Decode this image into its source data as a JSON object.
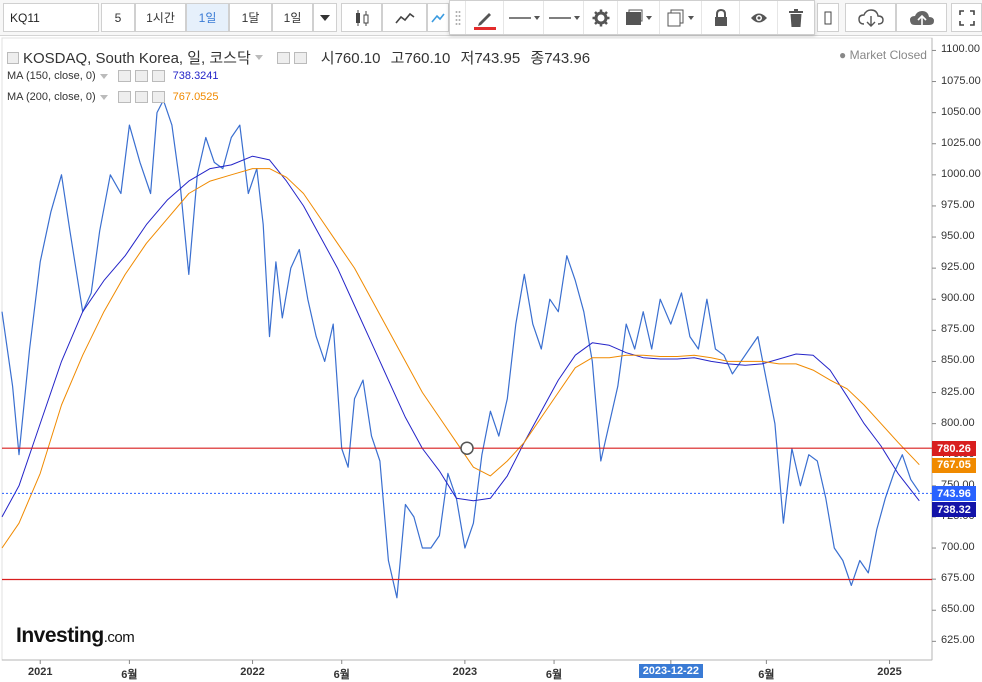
{
  "toolbar": {
    "symbol": "KQ11",
    "interval_value": "5",
    "buttons": [
      "1시간",
      "1일",
      "1달",
      "1일"
    ],
    "active_button_index": 1
  },
  "drawing_toolbar": {
    "icons": [
      "pencil-icon",
      "line-style-icon",
      "line-width-icon",
      "gear-icon",
      "fill-icon",
      "copy-icon",
      "lock-icon",
      "eye-icon",
      "trash-icon"
    ],
    "pen_color": "#e32b2b"
  },
  "legend": {
    "main": "KOSDAQ, South Korea, 일, 코스닥",
    "ohlc": [
      {
        "k": "시",
        "v": "760.10"
      },
      {
        "k": "고",
        "v": "760.10"
      },
      {
        "k": "저",
        "v": "743.95"
      },
      {
        "k": "종",
        "v": "743.96"
      }
    ],
    "ma1_label": "MA (150, close, 0)",
    "ma1_value": "738.3241",
    "ma1_color": "#2424c8",
    "ma2_label": "MA (200, close, 0)",
    "ma2_value": "767.0525",
    "ma2_color": "#f08a00"
  },
  "status": "Market Closed",
  "brand": {
    "name": "Investing",
    "suffix": ".com"
  },
  "chart_data": {
    "type": "line",
    "title": "KOSDAQ, South Korea, 일, 코스닥",
    "ylim": [
      610,
      1110
    ],
    "y_ticks": [
      1100,
      1075,
      1050,
      1025,
      1000,
      975,
      950,
      925,
      900,
      875,
      850,
      825,
      800,
      775,
      750,
      725,
      700,
      675,
      650,
      625
    ],
    "y_tick_labels": [
      "1100.00",
      "1075.00",
      "1050.00",
      "1025.00",
      "1000.00",
      "975.00",
      "950.00",
      "925.00",
      "900.00",
      "875.00",
      "850.00",
      "825.00",
      "800.00",
      "775.00",
      "750.00",
      "725.00",
      "700.00",
      "675.00",
      "650.00",
      "625.00"
    ],
    "x_labels": [
      "2021",
      "6월",
      "2022",
      "6월",
      "2023",
      "6월",
      "2023-12-22",
      "6월",
      "2025"
    ],
    "x_positions": [
      2021.0,
      2021.42,
      2022.0,
      2022.42,
      2023.0,
      2023.42,
      2023.97,
      2024.42,
      2025.0
    ],
    "crosshair_date_label": "2023-12-22",
    "series": [
      {
        "name": "KOSDAQ",
        "color": "#3a6fd0",
        "x": [
          2020.82,
          2020.87,
          2020.9,
          2020.95,
          2021.0,
          2021.05,
          2021.1,
          2021.14,
          2021.2,
          2021.24,
          2021.28,
          2021.33,
          2021.38,
          2021.42,
          2021.47,
          2021.52,
          2021.55,
          2021.58,
          2021.62,
          2021.66,
          2021.7,
          2021.74,
          2021.78,
          2021.82,
          2021.86,
          2021.9,
          2021.94,
          2021.98,
          2022.02,
          2022.05,
          2022.08,
          2022.11,
          2022.14,
          2022.18,
          2022.22,
          2022.26,
          2022.3,
          2022.34,
          2022.38,
          2022.42,
          2022.45,
          2022.48,
          2022.52,
          2022.56,
          2022.6,
          2022.64,
          2022.68,
          2022.72,
          2022.76,
          2022.8,
          2022.84,
          2022.88,
          2022.92,
          2022.96,
          2023.0,
          2023.04,
          2023.08,
          2023.12,
          2023.16,
          2023.2,
          2023.24,
          2023.28,
          2023.32,
          2023.36,
          2023.4,
          2023.44,
          2023.48,
          2023.52,
          2023.56,
          2023.6,
          2023.64,
          2023.68,
          2023.72,
          2023.76,
          2023.8,
          2023.84,
          2023.88,
          2023.92,
          2023.97,
          2024.02,
          2024.06,
          2024.1,
          2024.14,
          2024.18,
          2024.22,
          2024.26,
          2024.3,
          2024.34,
          2024.38,
          2024.42,
          2024.46,
          2024.5,
          2024.54,
          2024.58,
          2024.62,
          2024.66,
          2024.7,
          2024.74,
          2024.78,
          2024.82,
          2024.86,
          2024.9,
          2024.94,
          2024.98,
          2025.02,
          2025.06,
          2025.1,
          2025.14
        ],
        "y": [
          890,
          830,
          775,
          860,
          930,
          970,
          1000,
          955,
          890,
          905,
          955,
          1000,
          985,
          1040,
          1010,
          985,
          1050,
          1060,
          1040,
          990,
          920,
          1000,
          1030,
          1010,
          1005,
          1030,
          1040,
          985,
          1005,
          960,
          870,
          930,
          885,
          925,
          940,
          900,
          870,
          850,
          880,
          780,
          765,
          820,
          835,
          790,
          770,
          690,
          660,
          735,
          725,
          700,
          700,
          710,
          760,
          740,
          700,
          720,
          775,
          810,
          790,
          820,
          880,
          920,
          880,
          860,
          900,
          890,
          935,
          915,
          890,
          850,
          770,
          800,
          830,
          880,
          860,
          890,
          860,
          900,
          880,
          905,
          870,
          860,
          900,
          860,
          855,
          840,
          850,
          860,
          870,
          835,
          800,
          720,
          780,
          750,
          775,
          770,
          740,
          700,
          690,
          670,
          690,
          680,
          715,
          740,
          760,
          775,
          755,
          745
        ]
      },
      {
        "name": "MA (150, close, 0)",
        "color": "#2424c8",
        "x": [
          2020.82,
          2020.9,
          2021.0,
          2021.1,
          2021.2,
          2021.3,
          2021.4,
          2021.5,
          2021.6,
          2021.7,
          2021.8,
          2021.9,
          2022.0,
          2022.08,
          2022.16,
          2022.24,
          2022.32,
          2022.4,
          2022.48,
          2022.56,
          2022.64,
          2022.72,
          2022.8,
          2022.88,
          2022.96,
          2023.04,
          2023.12,
          2023.2,
          2023.28,
          2023.36,
          2023.44,
          2023.52,
          2023.6,
          2023.68,
          2023.76,
          2023.84,
          2023.92,
          2024.0,
          2024.08,
          2024.16,
          2024.24,
          2024.32,
          2024.4,
          2024.48,
          2024.56,
          2024.64,
          2024.72,
          2024.8,
          2024.88,
          2024.96,
          2025.04,
          2025.14
        ],
        "y": [
          725,
          750,
          800,
          850,
          890,
          915,
          935,
          960,
          980,
          995,
          1005,
          1008,
          1015,
          1012,
          995,
          975,
          950,
          925,
          895,
          865,
          835,
          805,
          780,
          762,
          740,
          738,
          740,
          758,
          785,
          810,
          835,
          855,
          865,
          863,
          857,
          853,
          852,
          852,
          853,
          850,
          848,
          847,
          848,
          852,
          856,
          855,
          843,
          822,
          800,
          782,
          760,
          738
        ]
      },
      {
        "name": "MA (200, close, 0)",
        "color": "#f08a00",
        "x": [
          2020.82,
          2020.9,
          2021.0,
          2021.1,
          2021.2,
          2021.3,
          2021.4,
          2021.5,
          2021.6,
          2021.7,
          2021.8,
          2021.9,
          2022.0,
          2022.08,
          2022.16,
          2022.24,
          2022.32,
          2022.4,
          2022.48,
          2022.56,
          2022.64,
          2022.72,
          2022.8,
          2022.88,
          2022.96,
          2023.04,
          2023.12,
          2023.2,
          2023.28,
          2023.36,
          2023.44,
          2023.52,
          2023.6,
          2023.68,
          2023.76,
          2023.84,
          2023.92,
          2024.0,
          2024.08,
          2024.16,
          2024.24,
          2024.32,
          2024.4,
          2024.48,
          2024.56,
          2024.64,
          2024.72,
          2024.8,
          2024.88,
          2024.96,
          2025.04,
          2025.14
        ],
        "y": [
          700,
          720,
          760,
          815,
          855,
          890,
          920,
          945,
          965,
          985,
          995,
          1000,
          1005,
          1005,
          998,
          985,
          965,
          945,
          925,
          900,
          875,
          850,
          825,
          805,
          785,
          765,
          758,
          770,
          785,
          805,
          825,
          845,
          853,
          853,
          855,
          855,
          854,
          854,
          855,
          853,
          850,
          850,
          850,
          848,
          848,
          843,
          835,
          828,
          815,
          800,
          785,
          767
        ]
      }
    ],
    "horizontal_lines": [
      {
        "value": 780.26,
        "label": "780.26",
        "color": "#d81e1e"
      },
      {
        "value": 674.74,
        "label": "674.74",
        "color": "#d81e1e"
      }
    ],
    "price_tags": [
      {
        "value": 780.26,
        "label": "780.26",
        "color": "#d81e1e"
      },
      {
        "value": 767.05,
        "label": "767.05",
        "color": "#f08a00"
      },
      {
        "value": 743.96,
        "label": "743.96",
        "color": "#2962ff"
      },
      {
        "value": 738.32,
        "label": "738.32",
        "color": "#1313a8"
      }
    ],
    "last_price_line": {
      "value": 743.96,
      "color": "#2962ff"
    }
  }
}
